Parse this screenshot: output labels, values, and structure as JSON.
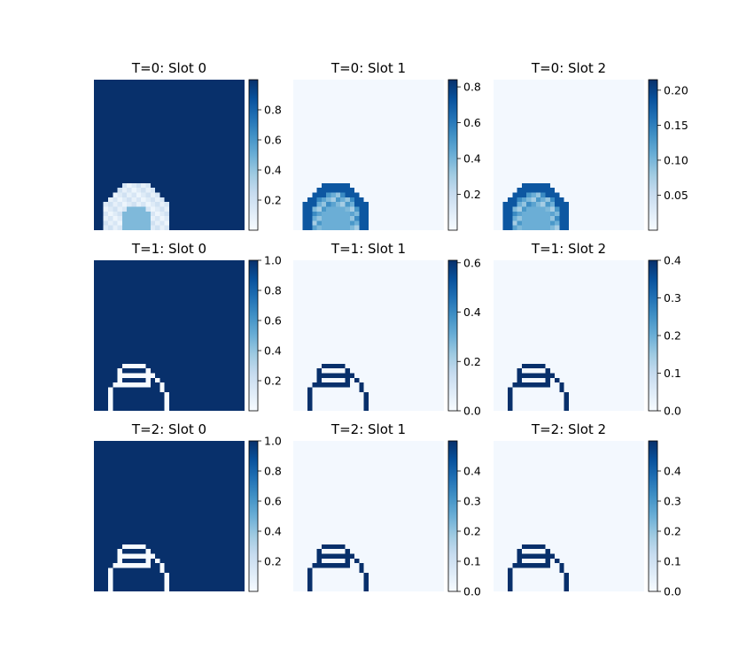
{
  "chart_data": {
    "type": "heatmap",
    "colormap": "Blues",
    "grid": false,
    "layout": "3 rows x 3 columns of image panels, each with a vertical colorbar on the right",
    "panels": [
      {
        "title": "T=0: Slot 0",
        "vmin": 0.0,
        "vmax": 1.0,
        "colorbar_ticks": [
          "0.2",
          "0.4",
          "0.6",
          "0.8"
        ],
        "colorbar_values": [
          0.2,
          0.4,
          0.6,
          0.8
        ]
      },
      {
        "title": "T=0: Slot 1",
        "vmin": 0.0,
        "vmax": 0.84,
        "colorbar_ticks": [
          "0.2",
          "0.4",
          "0.6",
          "0.8"
        ],
        "colorbar_values": [
          0.2,
          0.4,
          0.6,
          0.8
        ]
      },
      {
        "title": "T=0: Slot 2",
        "vmin": 0.0,
        "vmax": 0.215,
        "colorbar_ticks": [
          "0.05",
          "0.10",
          "0.15",
          "0.20"
        ],
        "colorbar_values": [
          0.05,
          0.1,
          0.15,
          0.2
        ]
      },
      {
        "title": "T=1: Slot 0",
        "vmin": 0.0,
        "vmax": 1.0,
        "colorbar_ticks": [
          "0.2",
          "0.4",
          "0.6",
          "0.8",
          "1.0"
        ],
        "colorbar_values": [
          0.2,
          0.4,
          0.6,
          0.8,
          1.0
        ]
      },
      {
        "title": "T=1: Slot 1",
        "vmin": 0.0,
        "vmax": 0.61,
        "colorbar_ticks": [
          "0.0",
          "0.2",
          "0.4",
          "0.6"
        ],
        "colorbar_values": [
          0.0,
          0.2,
          0.4,
          0.6
        ]
      },
      {
        "title": "T=1: Slot 2",
        "vmin": 0.0,
        "vmax": 0.4,
        "colorbar_ticks": [
          "0.0",
          "0.1",
          "0.2",
          "0.3",
          "0.4"
        ],
        "colorbar_values": [
          0.0,
          0.1,
          0.2,
          0.3,
          0.4
        ]
      },
      {
        "title": "T=2: Slot 0",
        "vmin": 0.0,
        "vmax": 1.0,
        "colorbar_ticks": [
          "0.2",
          "0.4",
          "0.6",
          "0.8",
          "1.0"
        ],
        "colorbar_values": [
          0.2,
          0.4,
          0.6,
          0.8,
          1.0
        ]
      },
      {
        "title": "T=2: Slot 1",
        "vmin": 0.0,
        "vmax": 0.5,
        "colorbar_ticks": [
          "0.0",
          "0.1",
          "0.2",
          "0.3",
          "0.4"
        ],
        "colorbar_values": [
          0.0,
          0.1,
          0.2,
          0.3,
          0.4
        ]
      },
      {
        "title": "T=2: Slot 2",
        "vmin": 0.0,
        "vmax": 0.5,
        "colorbar_ticks": [
          "0.0",
          "0.1",
          "0.2",
          "0.3",
          "0.4"
        ],
        "colorbar_values": [
          0.0,
          0.1,
          0.2,
          0.3,
          0.4
        ]
      }
    ]
  }
}
